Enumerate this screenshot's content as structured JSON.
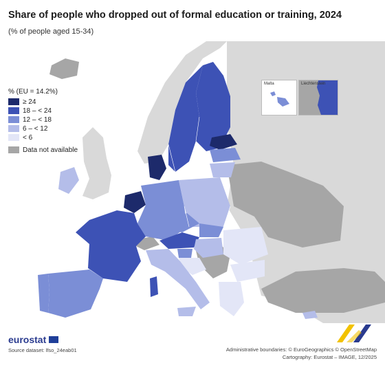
{
  "header": {
    "title": "Share of people who dropped out of formal education or training, 2024",
    "subtitle": "(% of people aged 15-34)"
  },
  "legend": {
    "title": "% (EU = 14.2%)",
    "classes": [
      {
        "label": "≥ 24",
        "color": "#1d2a6b"
      },
      {
        "label": "18 – < 24",
        "color": "#3d52b5"
      },
      {
        "label": "12 – < 18",
        "color": "#7b8ed6"
      },
      {
        "label": "6 – < 12",
        "color": "#b4bde9"
      },
      {
        "label": "< 6",
        "color": "#e3e6f7"
      }
    ],
    "not_available": {
      "label": "Data not available",
      "color": "#a6a6a6"
    }
  },
  "insets": {
    "malta": "Malta",
    "liechtenstein": "Liechtenstein"
  },
  "footer": {
    "brand": "eurostat",
    "source": "Source dataset: lfso_24eab01",
    "credits_line1": "Administrative boundaries: © EuroGeographics © OpenStreetMap",
    "credits_line2": "Cartography: Eurostat – IMAGE, 12/2025"
  },
  "colors": {
    "sea": "#ffffff",
    "non_eu_land": "#d9d9d9",
    "not_available": "#a6a6a6"
  }
}
